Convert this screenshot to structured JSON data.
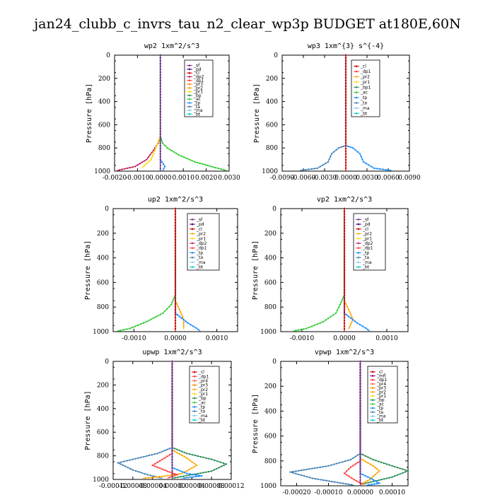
{
  "title": "jan24_clubb_c_invrs_tau_n2_clear_wp3p  BUDGET at180E,60N",
  "colors": {
    "sf": "#7b2d8e",
    "pd": "#4b0082",
    "cl": "#d00000",
    "dp1": "#ff4040",
    "dp2": "#c02060",
    "pr1": "#ffd700",
    "pr2": "#ffa500",
    "pr3": "#ff8c00",
    "pr4": "#ff6347",
    "bp": "#2e8b57",
    "ac": "#32cd32",
    "tp": "#1e90ff",
    "ta": "#4682b4",
    "ma": "#87ceeb",
    "bt": "#00ced1",
    "mfl": "#8b008b"
  },
  "chart_data": [
    {
      "type": "line",
      "title": "wp2   1xm^2/s^3",
      "ylabel": "Pressure  [hPa]",
      "xlim": [
        -0.002,
        0.003
      ],
      "ylim": [
        1000,
        0
      ],
      "xticks": [
        "-0.0020",
        "-0.0010",
        "0.0000",
        "0.0010",
        "0.0020",
        "0.0030"
      ],
      "yticks": [
        "0",
        "200",
        "400",
        "600",
        "800",
        "1000"
      ],
      "legend": [
        "_sf",
        "_pd",
        "_cl",
        "_dp2",
        "_dp1",
        "_pr3",
        "_pr2",
        "_pr1",
        "_bp",
        "_ac",
        "_tp",
        "_ta",
        "_ma",
        "_bt"
      ],
      "series": [
        {
          "name": "_ac",
          "color": "ac",
          "points": [
            [
              0,
              0
            ],
            [
              0,
              700
            ],
            [
              0.0001,
              760
            ],
            [
              0.0003,
              800
            ],
            [
              0.0008,
              860
            ],
            [
              0.0015,
              920
            ],
            [
              0.0024,
              970
            ],
            [
              0.0029,
              995
            ]
          ]
        },
        {
          "name": "_dp2",
          "color": "dp2",
          "points": [
            [
              0,
              0
            ],
            [
              0,
              700
            ],
            [
              -0.0001,
              760
            ],
            [
              -0.0003,
              820
            ],
            [
              -0.0006,
              900
            ],
            [
              -0.0011,
              960
            ],
            [
              -0.0019,
              995
            ]
          ]
        },
        {
          "name": "_pr1",
          "color": "pr1",
          "points": [
            [
              0,
              0
            ],
            [
              0,
              700
            ],
            [
              -0.0002,
              800
            ],
            [
              -0.0004,
              900
            ],
            [
              -0.0008,
              970
            ]
          ]
        },
        {
          "name": "_tp",
          "color": "tp",
          "points": [
            [
              0,
              0
            ],
            [
              0,
              900
            ],
            [
              0.0002,
              960
            ],
            [
              0.0001,
              995
            ]
          ]
        },
        {
          "name": "_sf",
          "color": "sf",
          "points": [
            [
              0,
              0
            ],
            [
              0,
              1000
            ]
          ]
        }
      ]
    },
    {
      "type": "line",
      "title": "wp3   1xm^{3} s^{-4}",
      "ylabel": "Pressure  [hPa]",
      "xlim": [
        -0.009,
        0.009
      ],
      "ylim": [
        1000,
        0
      ],
      "xticks": [
        "-0.0090",
        "-0.0060",
        "-0.0030",
        "0.0000",
        "0.0030",
        "0.0060",
        "0.0090"
      ],
      "yticks": [
        "0",
        "200",
        "400",
        "600",
        "800",
        "1000"
      ],
      "legend": [
        "_cl",
        "_dp1",
        "_pr2",
        "_pr1",
        "_bp1",
        "_ac",
        "_tp",
        "_ta",
        "_ma",
        "_bt"
      ],
      "series": [
        {
          "name": "_tp",
          "color": "tp",
          "points": [
            [
              0,
              0
            ],
            [
              0,
              780
            ],
            [
              0.001,
              800
            ],
            [
              0.002,
              850
            ],
            [
              0.0025,
              920
            ],
            [
              0.004,
              975
            ],
            [
              0.0065,
              995
            ]
          ]
        },
        {
          "name": "_ta",
          "color": "ta",
          "points": [
            [
              0,
              0
            ],
            [
              0,
              780
            ],
            [
              -0.001,
              800
            ],
            [
              -0.002,
              850
            ],
            [
              -0.0025,
              920
            ],
            [
              -0.004,
              975
            ],
            [
              -0.0065,
              995
            ]
          ]
        },
        {
          "name": "_cl",
          "color": "cl",
          "points": [
            [
              0,
              0
            ],
            [
              0,
              1000
            ]
          ]
        }
      ]
    },
    {
      "type": "line",
      "title": "up2   1xm^2/s^3",
      "ylabel": "Pressure  [hPa]",
      "xlim": [
        -0.0015,
        0.0015
      ],
      "ylim": [
        1000,
        0
      ],
      "xticks": [
        "-0.0010",
        "0.0000",
        "0.0010"
      ],
      "yticks": [
        "0",
        "200",
        "400",
        "600",
        "800",
        "1000"
      ],
      "legend": [
        "_sf",
        "_pd",
        "_cl",
        "_pr2",
        "_pr1",
        "_dp2",
        "_dp1",
        "_tp",
        "_ta",
        "_ma",
        "_bt"
      ],
      "series": [
        {
          "name": "_dp1",
          "color": "ac",
          "points": [
            [
              0,
              0
            ],
            [
              0,
              700
            ],
            [
              -0.0001,
              780
            ],
            [
              -0.0003,
              850
            ],
            [
              -0.0007,
              920
            ],
            [
              -0.0011,
              975
            ],
            [
              -0.0014,
              995
            ]
          ]
        },
        {
          "name": "_pr2",
          "color": "pr2",
          "points": [
            [
              0,
              0
            ],
            [
              0,
              750
            ],
            [
              0.0001,
              820
            ],
            [
              0.0002,
              900
            ],
            [
              0.0002,
              980
            ]
          ]
        },
        {
          "name": "_tp",
          "color": "tp",
          "points": [
            [
              0,
              0
            ],
            [
              0,
              850
            ],
            [
              0.0003,
              930
            ],
            [
              0.0005,
              970
            ],
            [
              0.0006,
              995
            ]
          ]
        },
        {
          "name": "_sf",
          "color": "cl",
          "points": [
            [
              0,
              0
            ],
            [
              0,
              1000
            ]
          ]
        }
      ]
    },
    {
      "type": "line",
      "title": "vp2   1xm^2/s^3",
      "ylabel": "Pressure  [hPa]",
      "xlim": [
        -0.0015,
        0.0015
      ],
      "ylim": [
        1000,
        0
      ],
      "xticks": [
        "-0.0010",
        "0.0000",
        "0.0010"
      ],
      "yticks": [
        "0",
        "200",
        "400",
        "600",
        "800",
        "1000"
      ],
      "legend": [
        "_sf",
        "_pd",
        "_cl",
        "_pr2",
        "_pr1",
        "_dp2",
        "_dp1",
        "_tp",
        "_ta",
        "_ma",
        "_bt"
      ],
      "series": [
        {
          "name": "_dp1",
          "color": "ac",
          "points": [
            [
              0,
              0
            ],
            [
              0,
              700
            ],
            [
              -0.0001,
              780
            ],
            [
              -0.0002,
              850
            ],
            [
              -0.0005,
              920
            ],
            [
              -0.0009,
              975
            ],
            [
              -0.0012,
              995
            ]
          ]
        },
        {
          "name": "_pr2",
          "color": "pr2",
          "points": [
            [
              0,
              0
            ],
            [
              0,
              750
            ],
            [
              0.0001,
              820
            ],
            [
              0.0002,
              900
            ],
            [
              0.0001,
              980
            ]
          ]
        },
        {
          "name": "_tp",
          "color": "tp",
          "points": [
            [
              0,
              0
            ],
            [
              0,
              850
            ],
            [
              0.0003,
              930
            ],
            [
              0.0005,
              970
            ],
            [
              0.0006,
              995
            ]
          ]
        },
        {
          "name": "_sf",
          "color": "cl",
          "points": [
            [
              0,
              0
            ],
            [
              0,
              1000
            ]
          ]
        }
      ]
    },
    {
      "type": "line",
      "title": "upwp   1xm^2/s^3",
      "ylabel": "Pressure  [hPa]",
      "xlim": [
        -0.00012,
        0.00012
      ],
      "ylim": [
        1000,
        0
      ],
      "xticks": [
        "-0.00012",
        "-0.00008",
        "-0.00004",
        "0.00000",
        "0.00004",
        "0.00008",
        "0.00012"
      ],
      "yticks": [
        "0",
        "200",
        "400",
        "600",
        "800",
        "1000"
      ],
      "legend": [
        "_cl",
        "_dp1",
        "_pr4",
        "_pr3",
        "_pr2",
        "_pr1",
        "_bp",
        "_ac",
        "_tp",
        "_ta",
        "_ma",
        "_bt"
      ],
      "series": [
        {
          "name": "_bp",
          "color": "bp",
          "points": [
            [
              0,
              0
            ],
            [
              0,
              730
            ],
            [
              3e-05,
              780
            ],
            [
              8e-05,
              830
            ],
            [
              0.00011,
              870
            ],
            [
              8e-05,
              930
            ],
            [
              4e-05,
              960
            ],
            [
              0,
              990
            ]
          ]
        },
        {
          "name": "_ta",
          "color": "ta",
          "points": [
            [
              0,
              0
            ],
            [
              0,
              730
            ],
            [
              -3e-05,
              780
            ],
            [
              -8e-05,
              830
            ],
            [
              -0.00011,
              860
            ],
            [
              -8e-05,
              920
            ],
            [
              -5e-05,
              960
            ],
            [
              -2e-05,
              990
            ]
          ]
        },
        {
          "name": "_pr2",
          "color": "pr2",
          "points": [
            [
              0,
              0
            ],
            [
              0,
              750
            ],
            [
              3e-05,
              820
            ],
            [
              5e-05,
              880
            ],
            [
              2e-05,
              950
            ],
            [
              -2e-05,
              975
            ],
            [
              -6e-05,
              990
            ]
          ]
        },
        {
          "name": "_dp1",
          "color": "dp1",
          "points": [
            [
              0,
              0
            ],
            [
              0,
              780
            ],
            [
              -2e-05,
              830
            ],
            [
              -4e-05,
              880
            ],
            [
              -1e-05,
              930
            ],
            [
              1e-05,
              960
            ],
            [
              -1e-05,
              990
            ]
          ]
        },
        {
          "name": "_tp",
          "color": "tp",
          "points": [
            [
              0,
              0
            ],
            [
              0,
              900
            ],
            [
              3e-05,
              950
            ],
            [
              6e-05,
              970
            ],
            [
              2e-05,
              990
            ]
          ]
        },
        {
          "name": "_cl",
          "color": "sf",
          "points": [
            [
              0,
              0
            ],
            [
              0,
              1000
            ]
          ]
        }
      ]
    },
    {
      "type": "line",
      "title": "vpwp   1xm^2/s^3",
      "ylabel": "Pressure  [hPa]",
      "xlim": [
        -0.00025,
        0.00015
      ],
      "ylim": [
        1000,
        0
      ],
      "xticks": [
        "-0.00020",
        "-0.00010",
        "0.00000",
        "0.00010"
      ],
      "yticks": [
        "0",
        "200",
        "400",
        "600",
        "800",
        "1000"
      ],
      "legend": [
        "_cl",
        "_mfl",
        "_dp1",
        "_pr4",
        "_pr3",
        "_pr2",
        "_pr1",
        "_bp",
        "_ac",
        "_tp",
        "_ta",
        "_ma",
        "_bt"
      ],
      "series": [
        {
          "name": "_bp",
          "color": "bp",
          "points": [
            [
              0,
              0
            ],
            [
              0,
              740
            ],
            [
              4e-05,
              790
            ],
            [
              0.0001,
              840
            ],
            [
              0.00015,
              880
            ],
            [
              0.0001,
              930
            ],
            [
              5e-05,
              960
            ],
            [
              0,
              990
            ]
          ]
        },
        {
          "name": "_ta",
          "color": "ta",
          "points": [
            [
              0,
              0
            ],
            [
              0,
              740
            ],
            [
              -3e-05,
              790
            ],
            [
              -0.0001,
              840
            ],
            [
              -0.00022,
              890
            ],
            [
              -0.00015,
              940
            ],
            [
              -8e-05,
              970
            ],
            [
              -2e-05,
              995
            ]
          ]
        },
        {
          "name": "_pr2",
          "color": "pr2",
          "points": [
            [
              0,
              0
            ],
            [
              0,
              780
            ],
            [
              4e-05,
              840
            ],
            [
              6e-05,
              880
            ],
            [
              3e-05,
              950
            ],
            [
              0,
              990
            ]
          ]
        },
        {
          "name": "_dp1",
          "color": "dp1",
          "points": [
            [
              0,
              0
            ],
            [
              0,
              800
            ],
            [
              -3e-05,
              850
            ],
            [
              -5e-05,
              900
            ],
            [
              -2e-05,
              950
            ],
            [
              1e-05,
              990
            ]
          ]
        },
        {
          "name": "_tp",
          "color": "tp",
          "points": [
            [
              0,
              0
            ],
            [
              0,
              900
            ],
            [
              4e-05,
              950
            ],
            [
              6e-05,
              980
            ],
            [
              2e-05,
              995
            ]
          ]
        },
        {
          "name": "_cl",
          "color": "sf",
          "points": [
            [
              0,
              0
            ],
            [
              0,
              1000
            ]
          ]
        }
      ]
    }
  ]
}
